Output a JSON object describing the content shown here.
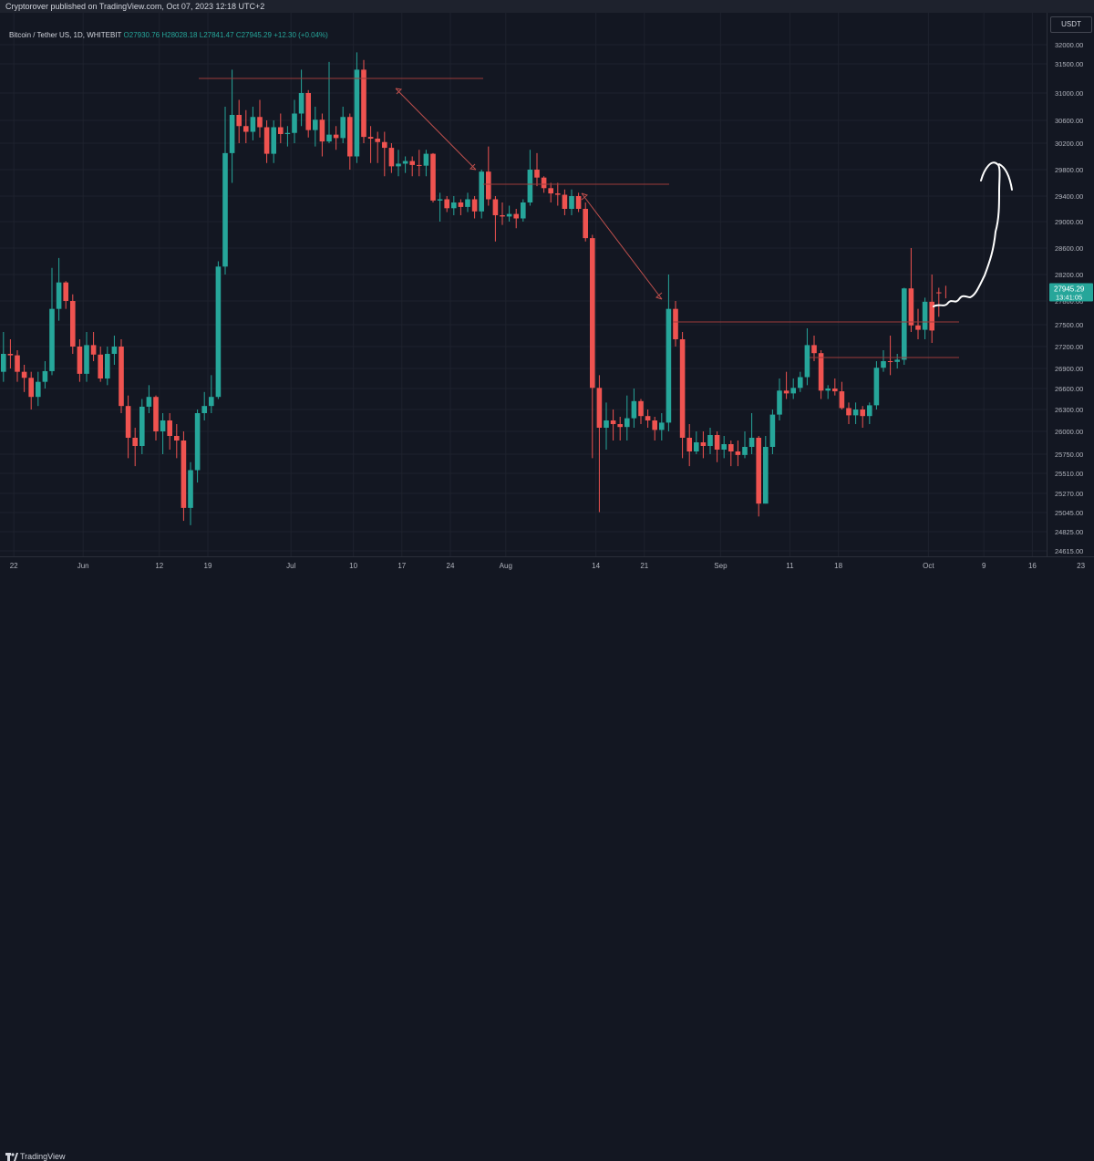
{
  "header": {
    "published": "Cryptorover published on TradingView.com, Oct 07, 2023 12:18 UTC+2"
  },
  "legend": {
    "symbol": "Bitcoin / Tether US, 1D, WHITEBIT",
    "o": "O27930.76",
    "h": "H28028.18",
    "l": "L27841.47",
    "c": "C27945.29",
    "chg": "+12.30 (+0.04%)"
  },
  "price_tag": {
    "price": "27945.29",
    "timer": "13:41:05"
  },
  "footer": {
    "brand": "TradingView"
  },
  "colors": {
    "up": "#26a69a",
    "down": "#ef5350",
    "bg": "#131722",
    "grid": "#1e222d",
    "line": "#9c3b3b",
    "hand": "#ffffff"
  },
  "chart_data": {
    "type": "candlestick",
    "title": "",
    "currency": "USDT",
    "y_ticks": [
      32000,
      31500,
      31000,
      30600,
      30200,
      29800,
      29400,
      29000,
      28600,
      28200,
      27800,
      27500,
      27200,
      26900,
      26600,
      26300,
      26000,
      25750,
      25510,
      25270,
      25045,
      24825,
      24615
    ],
    "y_tick_labels": [
      "32000.00",
      "31500.00",
      "31000.00",
      "30600.00",
      "30200.00",
      "29800.00",
      "29400.00",
      "29000.00",
      "28600.00",
      "28200.00",
      "27800.00",
      "27500.00",
      "27200.00",
      "26900.00",
      "26600.00",
      "26300.00",
      "26000.00",
      "25750.00",
      "25510.00",
      "25270.00",
      "25045.00",
      "24825.00",
      "24615.00"
    ],
    "x_ticks": [
      {
        "label": "22",
        "date": "2023-05-22"
      },
      {
        "label": "Jun",
        "date": "2023-06-01"
      },
      {
        "label": "12",
        "date": "2023-06-12"
      },
      {
        "label": "19",
        "date": "2023-06-19"
      },
      {
        "label": "Jul",
        "date": "2023-07-01"
      },
      {
        "label": "10",
        "date": "2023-07-10"
      },
      {
        "label": "17",
        "date": "2023-07-17"
      },
      {
        "label": "24",
        "date": "2023-07-24"
      },
      {
        "label": "Aug",
        "date": "2023-08-01"
      },
      {
        "label": "14",
        "date": "2023-08-14"
      },
      {
        "label": "21",
        "date": "2023-08-21"
      },
      {
        "label": "Sep",
        "date": "2023-09-01"
      },
      {
        "label": "11",
        "date": "2023-09-11"
      },
      {
        "label": "18",
        "date": "2023-09-18"
      },
      {
        "label": "Oct",
        "date": "2023-10-01"
      },
      {
        "label": "9",
        "date": "2023-10-09"
      },
      {
        "label": "16",
        "date": "2023-10-16"
      },
      {
        "label": "23",
        "date": "2023-10-23"
      }
    ],
    "start_date": "2023-05-20",
    "closes": [
      27100,
      27080,
      26850,
      26760,
      26480,
      26700,
      26860,
      27700,
      28080,
      27800,
      27200,
      26820,
      27220,
      27090,
      26750,
      27100,
      27200,
      26350,
      25930,
      25840,
      26340,
      26480,
      26000,
      26150,
      25950,
      25900,
      25100,
      25550,
      26250,
      26350,
      26480,
      28320,
      30050,
      30680,
      30500,
      30400,
      30650,
      30480,
      30040,
      30480,
      30360,
      30380,
      30700,
      31000,
      30430,
      30610,
      30230,
      30350,
      30290,
      30650,
      30000,
      31400,
      30310,
      30280,
      30220,
      30130,
      29850,
      29890,
      29930,
      29870,
      29860,
      30040,
      29330,
      29350,
      29210,
      29300,
      29230,
      29350,
      29160,
      29770,
      29350,
      29100,
      29080,
      29120,
      29050,
      29300,
      29800,
      29680,
      29520,
      29440,
      29420,
      29200,
      29400,
      29200,
      28750,
      26610,
      26050,
      26150,
      26100,
      26060,
      26180,
      26420,
      26210,
      26150,
      26020,
      26120,
      27700,
      27300,
      25930,
      25780,
      25880,
      25840,
      25960,
      25800,
      25860,
      25780,
      25740,
      25830,
      25930,
      25150,
      25830,
      26230,
      26570,
      26530,
      26610,
      26770,
      27220,
      27110,
      26570,
      26600,
      26560,
      26320,
      26220,
      26300,
      26210,
      26360,
      26910,
      27000,
      26990,
      27020,
      27990,
      27490,
      27430,
      27790,
      27420,
      27920,
      27945
    ],
    "opens": [
      26850,
      27100,
      27080,
      26850,
      26760,
      26480,
      26700,
      26860,
      27700,
      28080,
      27800,
      27200,
      26820,
      27220,
      27090,
      26750,
      27100,
      27200,
      26350,
      25930,
      25840,
      26340,
      26480,
      26000,
      26150,
      25950,
      25900,
      25100,
      25550,
      26250,
      26350,
      26480,
      28320,
      30050,
      30680,
      30500,
      30400,
      30650,
      30480,
      30040,
      30480,
      30360,
      30380,
      30700,
      31000,
      30430,
      30610,
      30230,
      30350,
      30290,
      30650,
      30000,
      31400,
      30310,
      30280,
      30220,
      30130,
      29850,
      29890,
      29930,
      29870,
      29860,
      30040,
      29330,
      29350,
      29210,
      29300,
      29230,
      29350,
      29160,
      29770,
      29350,
      29100,
      29080,
      29120,
      29050,
      29300,
      29800,
      29680,
      29520,
      29440,
      29420,
      29200,
      29400,
      29200,
      28750,
      26610,
      26050,
      26150,
      26100,
      26060,
      26180,
      26420,
      26210,
      26150,
      26020,
      26120,
      27700,
      27300,
      25930,
      25780,
      25880,
      25840,
      25960,
      25800,
      25860,
      25780,
      25740,
      25830,
      25930,
      25150,
      25830,
      26230,
      26570,
      26530,
      26610,
      26770,
      27220,
      27110,
      26570,
      26600,
      26560,
      26320,
      26220,
      26300,
      26210,
      26360,
      26910,
      27000,
      26990,
      27020,
      27990,
      27490,
      27430,
      27790,
      27930
    ],
    "highs": [
      27400,
      27300,
      27150,
      26950,
      26850,
      26850,
      27000,
      28300,
      28450,
      28100,
      27900,
      27300,
      27400,
      27400,
      27200,
      27200,
      27350,
      27300,
      26500,
      26050,
      26450,
      26650,
      26500,
      26250,
      26250,
      26100,
      26000,
      25650,
      26300,
      26550,
      26800,
      28400,
      30800,
      31400,
      30900,
      30750,
      30800,
      30900,
      30600,
      30600,
      30700,
      30500,
      30900,
      31400,
      31050,
      30800,
      30700,
      31550,
      30500,
      30800,
      30700,
      31800,
      31600,
      30500,
      30400,
      30400,
      30200,
      30100,
      30000,
      30000,
      30100,
      30100,
      30050,
      29450,
      29400,
      29400,
      29350,
      29450,
      29400,
      29800,
      30150,
      29400,
      29300,
      29250,
      29200,
      29350,
      30100,
      30050,
      29700,
      29600,
      29600,
      29500,
      29500,
      29450,
      29300,
      28800,
      26800,
      26400,
      26300,
      26200,
      26500,
      26600,
      26450,
      26300,
      26200,
      26250,
      28200,
      27800,
      27400,
      26100,
      26000,
      26000,
      26050,
      26000,
      25950,
      25900,
      25900,
      26000,
      26250,
      25950,
      25950,
      26300,
      26750,
      26850,
      26750,
      26850,
      27450,
      27350,
      27150,
      26650,
      26750,
      26700,
      26400,
      26400,
      26350,
      26400,
      27000,
      27150,
      27350,
      27100,
      28000,
      28600,
      27700,
      27850,
      28200,
      28000,
      28030
    ],
    "lows": [
      26700,
      26900,
      26700,
      26550,
      26300,
      26350,
      26600,
      26800,
      27550,
      27700,
      27100,
      26700,
      26700,
      27000,
      26700,
      26650,
      26950,
      26250,
      25700,
      25600,
      25750,
      26250,
      25900,
      25750,
      25800,
      25700,
      24950,
      24900,
      25400,
      26150,
      26250,
      26450,
      28200,
      29600,
      30200,
      30200,
      30250,
      30300,
      29900,
      29900,
      30200,
      30150,
      30200,
      30500,
      30300,
      30150,
      30000,
      30200,
      30100,
      30200,
      29800,
      29900,
      30200,
      29900,
      29900,
      29700,
      29750,
      29700,
      29750,
      29700,
      29700,
      29700,
      29300,
      29000,
      29150,
      29100,
      29100,
      29150,
      29050,
      29050,
      29250,
      28700,
      28950,
      29000,
      28900,
      29000,
      29250,
      29550,
      29450,
      29300,
      29250,
      29100,
      29100,
      29150,
      28700,
      25700,
      25050,
      25800,
      25900,
      25900,
      25900,
      26050,
      26100,
      26050,
      25900,
      25900,
      26000,
      27200,
      25700,
      25600,
      25750,
      25700,
      25750,
      25650,
      25700,
      25600,
      25600,
      25700,
      25750,
      25000,
      25150,
      25750,
      26150,
      26450,
      26450,
      26550,
      26650,
      27000,
      26450,
      26450,
      26500,
      26300,
      26100,
      26100,
      26050,
      26100,
      26300,
      26850,
      26800,
      26900,
      26950,
      27400,
      27300,
      27300,
      27250,
      27600,
      27840
    ]
  }
}
